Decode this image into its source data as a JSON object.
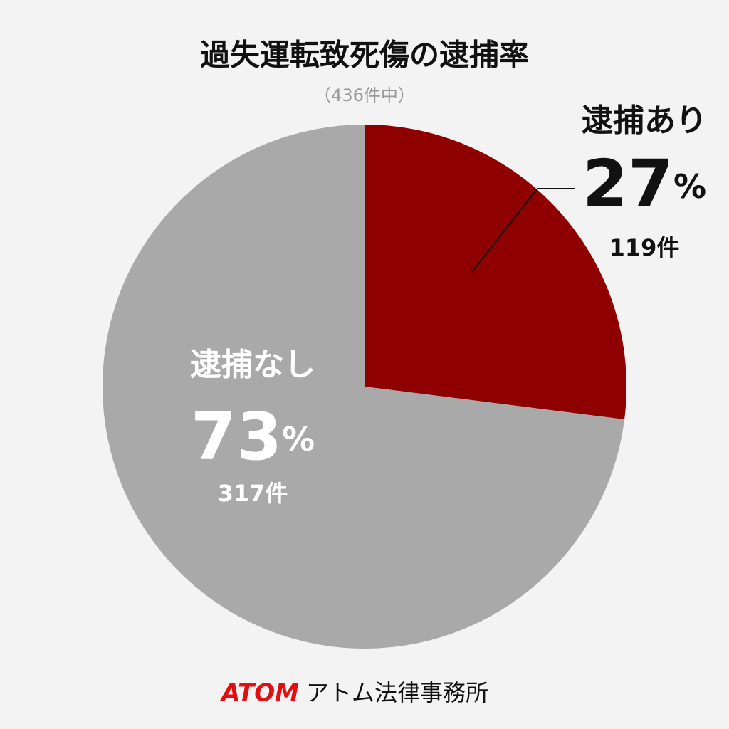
{
  "chart_data": {
    "type": "pie",
    "title": "過失運転致死傷の逮捕率",
    "subtitle": "（436件中）",
    "categories": [
      "逮捕あり",
      "逮捕なし"
    ],
    "values": [
      27,
      73
    ],
    "unit": "%",
    "counts": [
      119,
      317
    ],
    "count_labels": [
      "119件",
      "317件"
    ],
    "colors": [
      "#8f0000",
      "#a9a9a9"
    ],
    "footer": {
      "brand": "ATOM",
      "name": "アトム法律事務所"
    }
  }
}
